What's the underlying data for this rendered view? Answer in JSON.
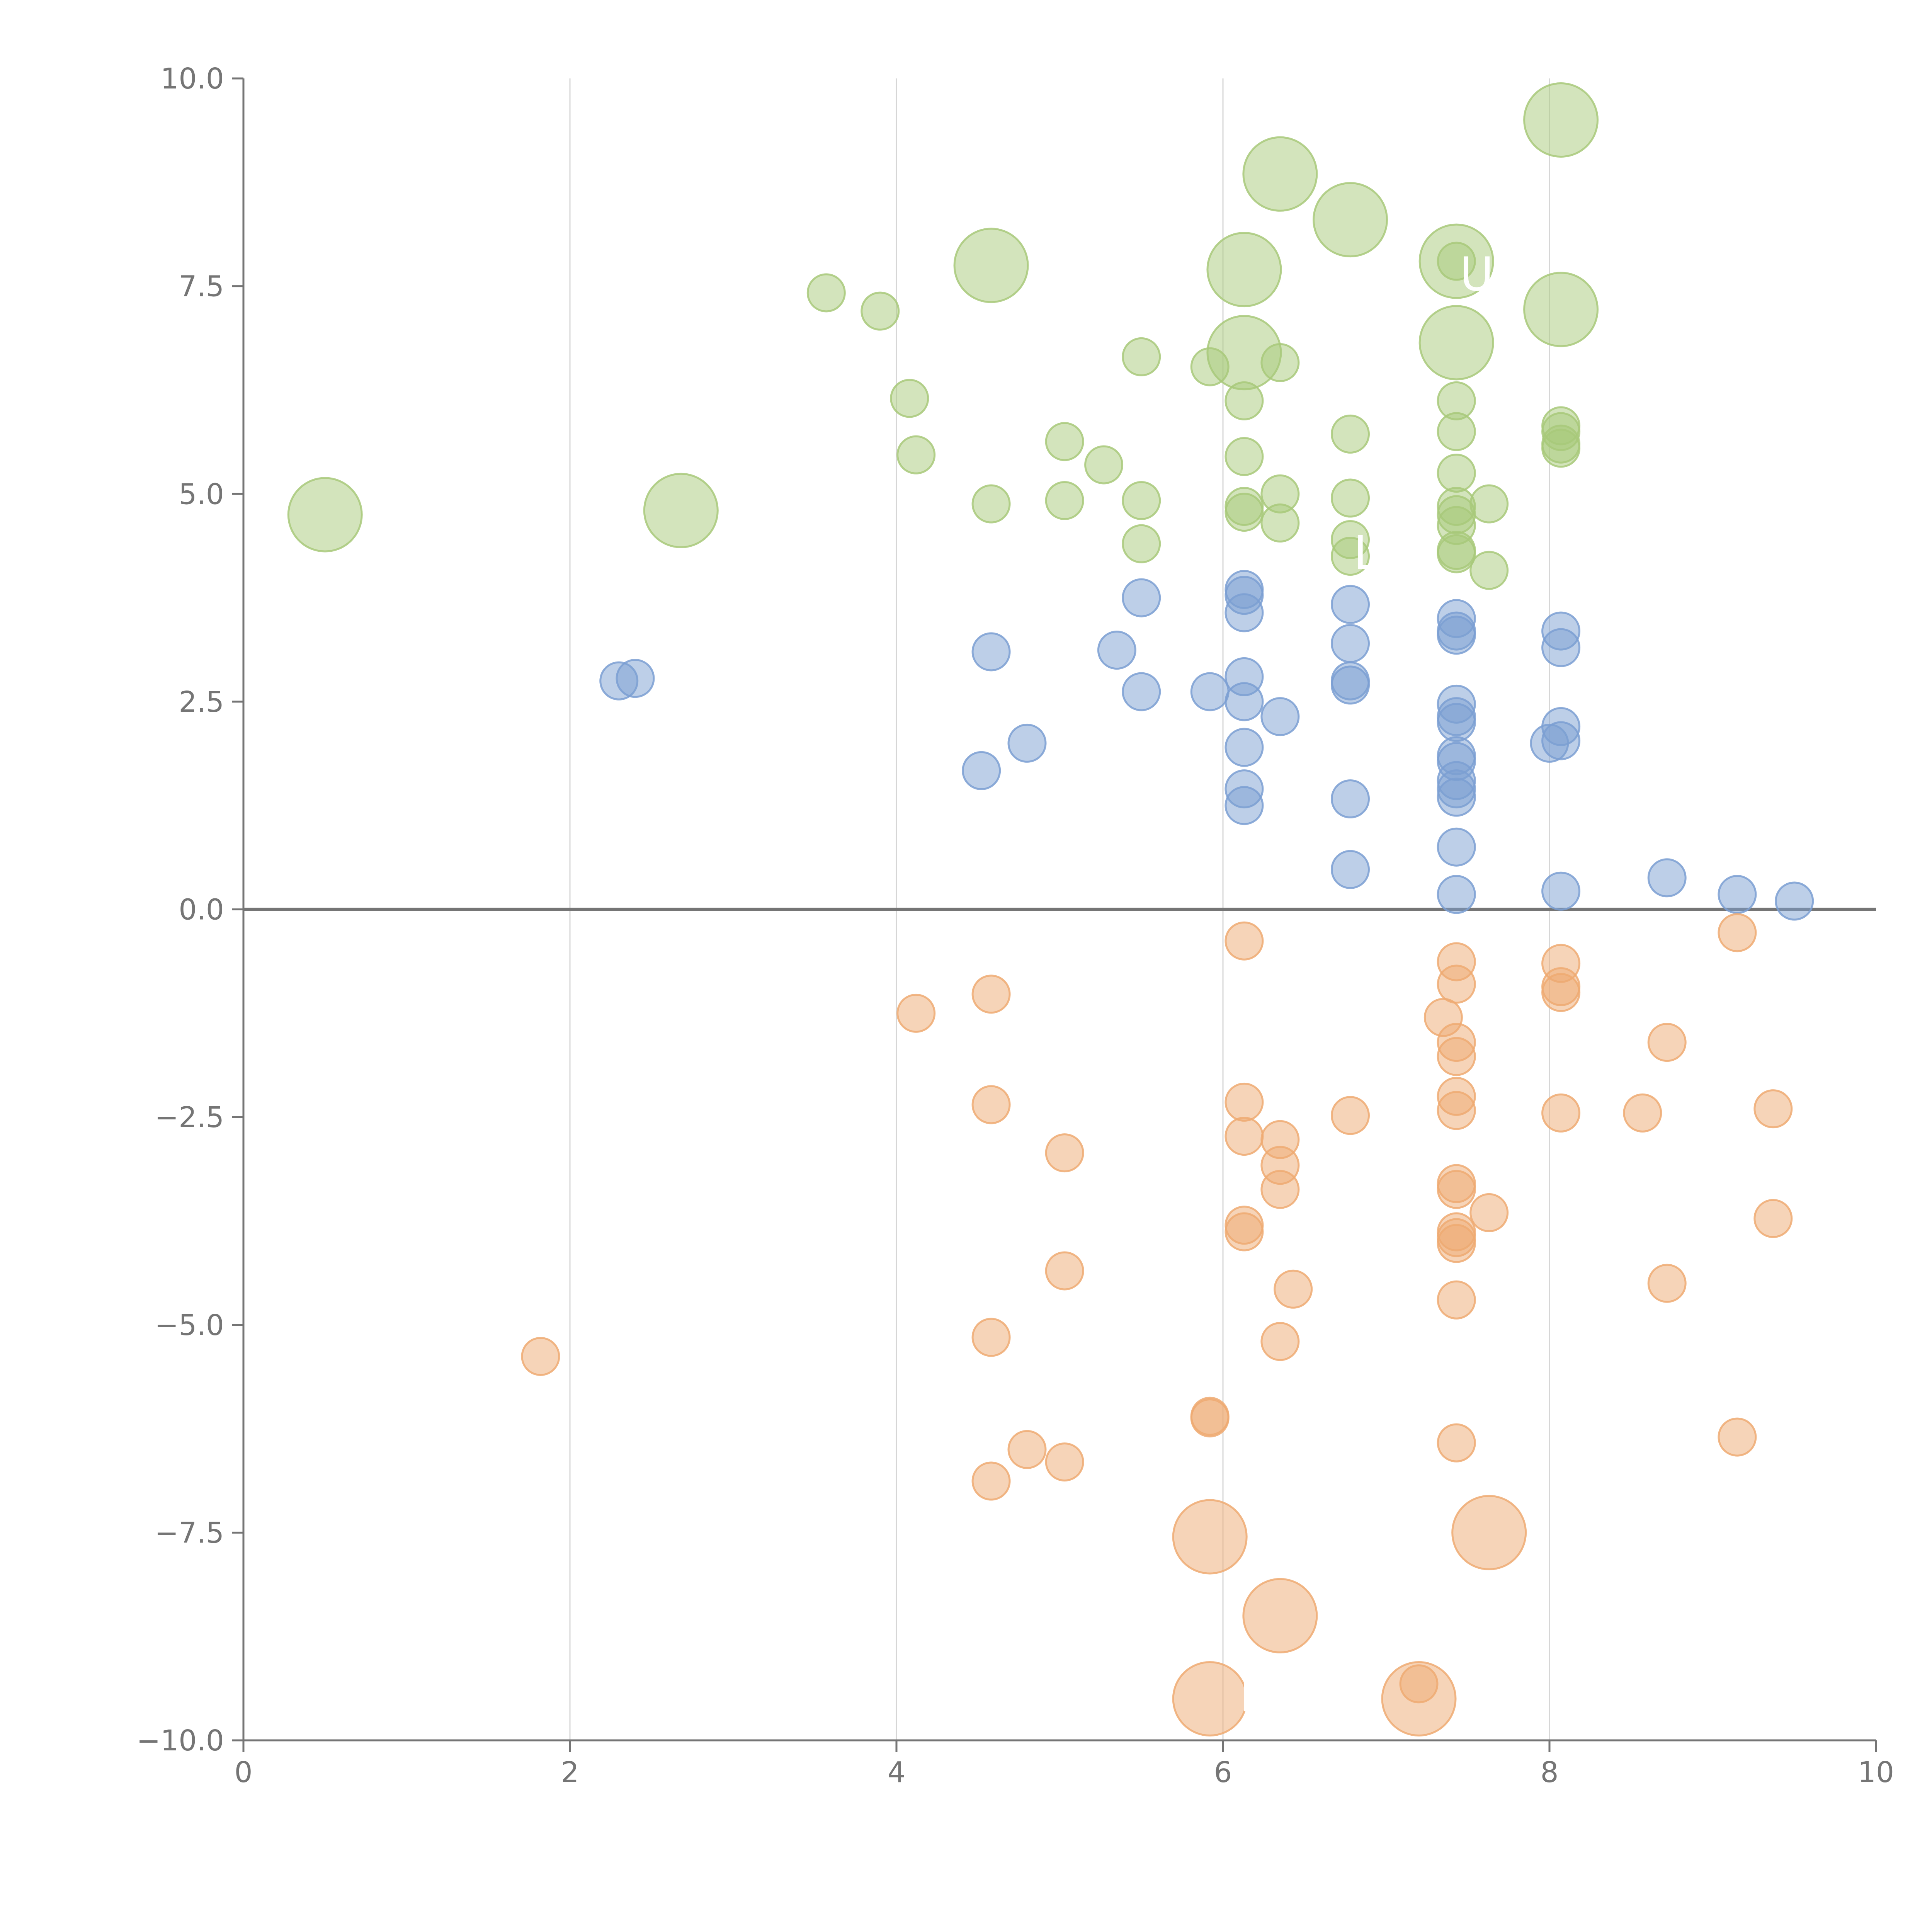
{
  "colors": {
    "top": "#a8c97a",
    "middle": "#7b9fd2",
    "bottom": "#eeaa72",
    "axis": "#757575",
    "grid": "#d6d6d6",
    "label": "#ffffff"
  },
  "chart_data": {
    "type": "scatter",
    "title": "",
    "xlabel": "",
    "ylabel": "",
    "xlim": [
      0,
      10
    ],
    "ylim": [
      -10,
      10
    ],
    "x_ticks": [
      0,
      2,
      4,
      6,
      8,
      10
    ],
    "x_tick_labels": [
      "0",
      "2",
      "4",
      "6",
      "8",
      "10"
    ],
    "y_ticks": [
      10,
      7.5,
      5,
      2.5,
      0,
      -2.5,
      -5,
      -7.5,
      -10
    ],
    "y_tick_labels": [
      "10.0",
      "7.5",
      "5.0",
      "2.5",
      "0.0",
      "−2.5",
      "−5.0",
      "−7.5",
      "−10.0"
    ],
    "vertical_grid_at": [
      2,
      4,
      6,
      8
    ],
    "horizontal_line_at": 0,
    "size_scale": "small = 1, large = 2",
    "series": [
      {
        "name": "top",
        "color_key": "top",
        "points": [
          [
            0.5,
            4.75,
            2
          ],
          [
            2.68,
            4.8,
            2
          ],
          [
            4.58,
            7.75,
            2
          ],
          [
            6.13,
            7.7,
            2
          ],
          [
            6.35,
            8.85,
            2
          ],
          [
            6.78,
            8.3,
            2
          ],
          [
            7.43,
            7.8,
            2
          ],
          [
            8.07,
            9.5,
            2
          ],
          [
            8.07,
            7.22,
            2
          ],
          [
            7.43,
            6.82,
            2
          ],
          [
            6.13,
            6.7,
            2
          ],
          [
            3.57,
            7.42,
            1
          ],
          [
            3.9,
            7.2,
            1
          ],
          [
            4.08,
            6.15,
            1
          ],
          [
            4.12,
            5.47,
            1
          ],
          [
            4.58,
            4.88,
            1
          ],
          [
            5.03,
            5.63,
            1
          ],
          [
            5.03,
            4.92,
            1
          ],
          [
            5.27,
            5.35,
            1
          ],
          [
            5.5,
            6.65,
            1
          ],
          [
            5.5,
            4.92,
            1
          ],
          [
            5.5,
            4.4,
            1
          ],
          [
            5.92,
            6.53,
            1
          ],
          [
            6.13,
            6.12,
            1
          ],
          [
            6.13,
            5.45,
            1
          ],
          [
            6.13,
            4.85,
            1
          ],
          [
            6.13,
            4.78,
            1
          ],
          [
            6.35,
            6.58,
            1
          ],
          [
            6.35,
            5.0,
            1
          ],
          [
            6.35,
            4.65,
            1
          ],
          [
            6.78,
            5.72,
            1
          ],
          [
            6.78,
            4.95,
            1
          ],
          [
            6.78,
            4.45,
            1
          ],
          [
            6.78,
            4.25,
            1
          ],
          [
            7.43,
            7.8,
            1
          ],
          [
            7.43,
            6.12,
            1
          ],
          [
            7.43,
            5.75,
            1
          ],
          [
            7.43,
            5.25,
            1
          ],
          [
            7.43,
            4.85,
            1
          ],
          [
            7.43,
            4.75,
            1
          ],
          [
            7.43,
            4.62,
            1
          ],
          [
            7.43,
            4.32,
            1
          ],
          [
            7.43,
            4.28,
            1
          ],
          [
            7.63,
            4.88,
            1
          ],
          [
            7.63,
            4.08,
            1
          ],
          [
            8.07,
            5.82,
            1
          ],
          [
            8.07,
            5.75,
            1
          ],
          [
            8.07,
            5.6,
            1
          ],
          [
            8.07,
            5.55,
            1
          ]
        ]
      },
      {
        "name": "middle",
        "color_key": "middle",
        "points": [
          [
            2.3,
            2.75,
            1
          ],
          [
            2.4,
            2.78,
            1
          ],
          [
            4.52,
            1.67,
            1
          ],
          [
            4.58,
            3.1,
            1
          ],
          [
            4.8,
            2.0,
            1
          ],
          [
            5.35,
            3.12,
            1
          ],
          [
            5.5,
            3.75,
            1
          ],
          [
            5.5,
            2.62,
            1
          ],
          [
            5.92,
            2.62,
            1
          ],
          [
            6.13,
            3.85,
            1
          ],
          [
            6.13,
            3.78,
            1
          ],
          [
            6.13,
            3.57,
            1
          ],
          [
            6.13,
            2.8,
            1
          ],
          [
            6.13,
            2.5,
            1
          ],
          [
            6.13,
            1.95,
            1
          ],
          [
            6.13,
            1.45,
            1
          ],
          [
            6.13,
            1.25,
            1
          ],
          [
            6.35,
            2.32,
            1
          ],
          [
            6.78,
            3.67,
            1
          ],
          [
            6.78,
            3.2,
            1
          ],
          [
            6.78,
            2.75,
            1
          ],
          [
            6.78,
            2.7,
            1
          ],
          [
            6.78,
            1.33,
            1
          ],
          [
            6.78,
            0.48,
            1
          ],
          [
            7.43,
            3.5,
            1
          ],
          [
            7.43,
            3.35,
            1
          ],
          [
            7.43,
            3.3,
            1
          ],
          [
            7.43,
            2.47,
            1
          ],
          [
            7.43,
            2.32,
            1
          ],
          [
            7.43,
            2.25,
            1
          ],
          [
            7.43,
            1.85,
            1
          ],
          [
            7.43,
            1.78,
            1
          ],
          [
            7.43,
            1.55,
            1
          ],
          [
            7.43,
            1.45,
            1
          ],
          [
            7.43,
            1.35,
            1
          ],
          [
            7.43,
            0.75,
            1
          ],
          [
            7.43,
            0.18,
            1
          ],
          [
            8.0,
            2.0,
            1
          ],
          [
            8.07,
            3.35,
            1
          ],
          [
            8.07,
            3.15,
            1
          ],
          [
            8.07,
            2.2,
            1
          ],
          [
            8.07,
            2.03,
            1
          ],
          [
            8.07,
            0.22,
            1
          ],
          [
            8.72,
            0.38,
            1
          ],
          [
            9.15,
            0.18,
            1
          ],
          [
            9.5,
            0.1,
            1
          ]
        ]
      },
      {
        "name": "bottom",
        "color_key": "bottom",
        "points": [
          [
            5.92,
            -7.55,
            2
          ],
          [
            6.35,
            -8.5,
            2
          ],
          [
            7.63,
            -7.5,
            2
          ],
          [
            5.92,
            -9.5,
            2
          ],
          [
            7.2,
            -9.5,
            2
          ],
          [
            1.82,
            -5.38,
            1
          ],
          [
            4.12,
            -1.25,
            1
          ],
          [
            4.58,
            -1.02,
            1
          ],
          [
            4.58,
            -2.35,
            1
          ],
          [
            4.58,
            -5.15,
            1
          ],
          [
            4.58,
            -6.88,
            1
          ],
          [
            4.8,
            -6.5,
            1
          ],
          [
            5.03,
            -2.93,
            1
          ],
          [
            5.03,
            -4.35,
            1
          ],
          [
            5.03,
            -6.65,
            1
          ],
          [
            5.92,
            -6.12,
            1
          ],
          [
            5.92,
            -6.1,
            1
          ],
          [
            6.13,
            -0.38,
            1
          ],
          [
            6.13,
            -2.32,
            1
          ],
          [
            6.13,
            -2.73,
            1
          ],
          [
            6.13,
            -3.8,
            1
          ],
          [
            6.13,
            -3.88,
            1
          ],
          [
            6.35,
            -2.77,
            1
          ],
          [
            6.35,
            -3.08,
            1
          ],
          [
            6.35,
            -3.37,
            1
          ],
          [
            6.35,
            -5.2,
            1
          ],
          [
            6.43,
            -4.57,
            1
          ],
          [
            6.78,
            -2.48,
            1
          ],
          [
            7.2,
            -9.32,
            1
          ],
          [
            7.35,
            -1.3,
            1
          ],
          [
            7.43,
            -0.63,
            1
          ],
          [
            7.43,
            -0.9,
            1
          ],
          [
            7.43,
            -1.6,
            1
          ],
          [
            7.43,
            -1.77,
            1
          ],
          [
            7.43,
            -2.25,
            1
          ],
          [
            7.43,
            -2.42,
            1
          ],
          [
            7.43,
            -3.3,
            1
          ],
          [
            7.43,
            -3.37,
            1
          ],
          [
            7.43,
            -3.88,
            1
          ],
          [
            7.43,
            -3.95,
            1
          ],
          [
            7.43,
            -4.02,
            1
          ],
          [
            7.43,
            -4.7,
            1
          ],
          [
            7.43,
            -6.42,
            1
          ],
          [
            7.63,
            -3.65,
            1
          ],
          [
            8.07,
            -0.65,
            1
          ],
          [
            8.07,
            -0.93,
            1
          ],
          [
            8.07,
            -1.0,
            1
          ],
          [
            8.07,
            -2.45,
            1
          ],
          [
            8.57,
            -2.45,
            1
          ],
          [
            8.72,
            -1.6,
            1
          ],
          [
            8.72,
            -4.5,
            1
          ],
          [
            9.15,
            -0.28,
            1
          ],
          [
            9.15,
            -6.35,
            1
          ],
          [
            9.37,
            -2.4,
            1
          ],
          [
            9.37,
            -3.72,
            1
          ]
        ]
      }
    ],
    "annotations": [
      {
        "text": "P",
        "x": 6.1,
        "y": -9.65
      },
      {
        "text": "U",
        "x": 7.45,
        "y": 7.45
      },
      {
        "text": "L",
        "x": 6.8,
        "y": 4.1
      }
    ]
  }
}
